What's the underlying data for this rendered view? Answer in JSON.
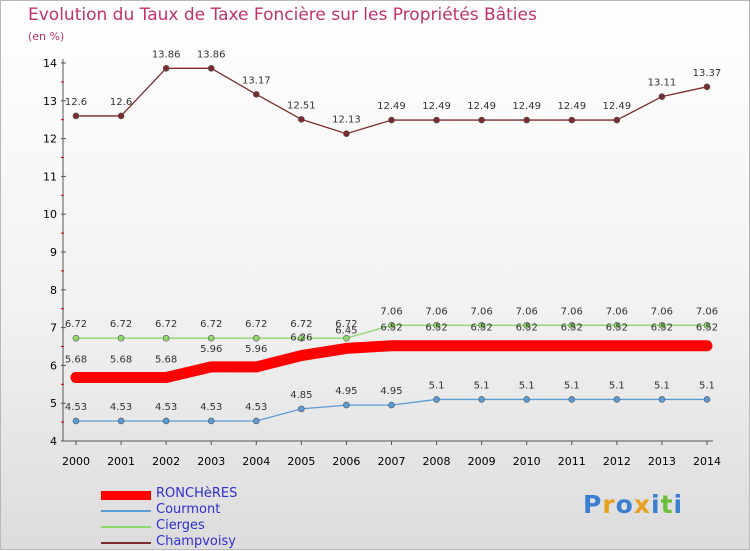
{
  "title": "Evolution du Taux de Taxe Foncière sur les Propriétés Bâties",
  "unit": "(en %)",
  "logo": {
    "parts": [
      "P",
      "r",
      "o",
      "x",
      "i",
      "t",
      "i"
    ],
    "colors": [
      "#3a7fd0",
      "#e8a020",
      "#3a7fd0",
      "#e8a020",
      "#3a7fd0",
      "#6cbf3a",
      "#3a7fd0"
    ]
  },
  "chart_data": {
    "type": "line",
    "title": "Evolution du Taux de Taxe Foncière sur les Propriétés Bâties",
    "ylabel": "(en %)",
    "xlabel": "",
    "ylim": [
      4,
      14
    ],
    "yticks": [
      "4",
      "5",
      "6",
      "7",
      "8",
      "9",
      "10",
      "11",
      "12",
      "13",
      "14"
    ],
    "categories": [
      "2000",
      "2001",
      "2002",
      "2003",
      "2004",
      "2005",
      "2006",
      "2007",
      "2008",
      "2009",
      "2010",
      "2011",
      "2012",
      "2013",
      "2014"
    ],
    "series": [
      {
        "name": "RONCHèRES",
        "color": "#ff0000",
        "values": [
          5.68,
          5.68,
          5.68,
          5.96,
          5.96,
          6.26,
          6.45,
          6.52,
          6.52,
          6.52,
          6.52,
          6.52,
          6.52,
          6.52,
          6.52
        ],
        "labels": [
          "5.68",
          "5.68",
          "5.68",
          "5.96",
          "5.96",
          "6.26",
          "6.45",
          "6.52",
          "6.52",
          "6.52",
          "6.52",
          "6.52",
          "6.52",
          "6.52",
          "6.52"
        ]
      },
      {
        "name": "Courmont",
        "color": "#5b9bd5",
        "values": [
          4.53,
          4.53,
          4.53,
          4.53,
          4.53,
          4.85,
          4.95,
          4.95,
          5.1,
          5.1,
          5.1,
          5.1,
          5.1,
          5.1,
          5.1
        ],
        "labels": [
          "4.53",
          "4.53",
          "4.53",
          "4.53",
          "4.53",
          "4.85",
          "4.95",
          "4.95",
          "5.1",
          "5.1",
          "5.1",
          "5.1",
          "5.1",
          "5.1",
          "5.1"
        ]
      },
      {
        "name": "Cierges",
        "color": "#8fd86a",
        "values": [
          6.72,
          6.72,
          6.72,
          6.72,
          6.72,
          6.72,
          6.72,
          7.06,
          7.06,
          7.06,
          7.06,
          7.06,
          7.06,
          7.06,
          7.06
        ],
        "labels": [
          "6.72",
          "6.72",
          "6.72",
          "6.72",
          "6.72",
          "6.72",
          "6.72",
          "7.06",
          "7.06",
          "7.06",
          "7.06",
          "7.06",
          "7.06",
          "7.06",
          "7.06"
        ]
      },
      {
        "name": "Champvoisy",
        "color": "#7b2c2c",
        "values": [
          12.6,
          12.6,
          13.86,
          13.86,
          13.17,
          12.51,
          12.13,
          12.49,
          12.49,
          12.49,
          12.49,
          12.49,
          12.49,
          13.11,
          13.37
        ],
        "labels": [
          "12.6",
          "12.6",
          "13.86",
          "13.86",
          "13.17",
          "12.51",
          "12.13",
          "12.49",
          "12.49",
          "12.49",
          "12.49",
          "12.49",
          "12.49",
          "13.11",
          "13.37"
        ]
      }
    ]
  }
}
